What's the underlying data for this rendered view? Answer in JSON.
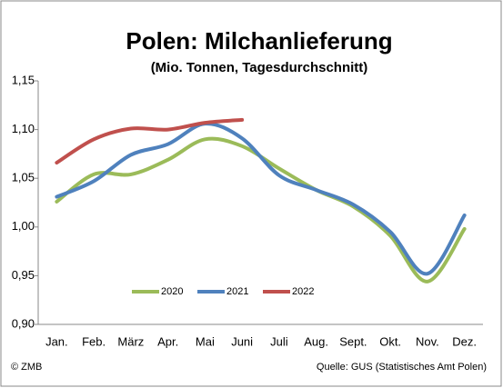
{
  "chart_data": {
    "type": "line",
    "title": "Polen: Milchanlieferung",
    "subtitle": "(Mio. Tonnen, Tagesdurchschnitt)",
    "categories": [
      "Jan.",
      "Feb.",
      "März",
      "Apr.",
      "Mai",
      "Juni",
      "Juli",
      "Aug.",
      "Sept.",
      "Okt.",
      "Nov.",
      "Dez."
    ],
    "series": [
      {
        "name": "2020",
        "color": "#9bbb59",
        "values": [
          1.026,
          1.054,
          1.054,
          1.069,
          1.09,
          1.083,
          1.06,
          1.038,
          1.021,
          0.991,
          0.944,
          0.998
        ]
      },
      {
        "name": "2021",
        "color": "#4f81bd",
        "values": [
          1.031,
          1.047,
          1.074,
          1.085,
          1.106,
          1.091,
          1.053,
          1.038,
          1.023,
          0.995,
          0.952,
          1.012
        ]
      },
      {
        "name": "2022",
        "color": "#c0504d",
        "values": [
          1.066,
          1.09,
          1.101,
          1.1,
          1.107,
          1.11,
          null,
          null,
          null,
          null,
          null,
          null
        ]
      }
    ],
    "ylim": [
      0.9,
      1.15
    ],
    "yticks": [
      {
        "value": 0.9,
        "label": "0,90"
      },
      {
        "value": 0.95,
        "label": "0,95"
      },
      {
        "value": 1.0,
        "label": "1,00"
      },
      {
        "value": 1.05,
        "label": "1,05"
      },
      {
        "value": 1.1,
        "label": "1,10"
      },
      {
        "value": 1.15,
        "label": "1,15"
      }
    ],
    "grid": false,
    "legend": "bottom",
    "copyright": "© ZMB",
    "source": "Quelle:  GUS (Statistisches Amt Polen)"
  }
}
